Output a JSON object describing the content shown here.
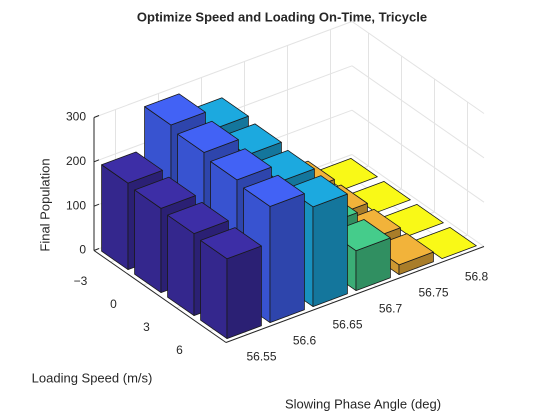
{
  "chart_data": {
    "type": "bar3",
    "title": "Optimize Speed and Loading On-Time, Tricycle",
    "xlabel": "Slowing Phase Angle (deg)",
    "ylabel": "Loading Speed (m/s)",
    "zlabel": "Final Population",
    "x": [
      56.55,
      56.6,
      56.65,
      56.7,
      56.75,
      56.8
    ],
    "y": [
      {
        "value": -3,
        "label": "−3"
      },
      0,
      3,
      6
    ],
    "columns": [
      {
        "color": "#3d2ea6",
        "values": [
          195,
          190,
          185,
          180
        ]
      },
      {
        "color": "#4262f5",
        "values": [
          290,
          280,
          270,
          262
        ]
      },
      {
        "color": "#1ca9df",
        "values": [
          245,
          238,
          230,
          225
        ]
      },
      {
        "color": "#45cc8b",
        "values": [
          105,
          100,
          95,
          90
        ]
      },
      {
        "color": "#f2b33a",
        "values": [
          30,
          28,
          25,
          22
        ]
      },
      {
        "color": "#f9f917",
        "values": [
          0,
          0,
          0,
          0
        ]
      }
    ],
    "zlim": [
      0,
      300
    ],
    "zticks": [
      0,
      100,
      200,
      300
    ],
    "grid": true
  }
}
